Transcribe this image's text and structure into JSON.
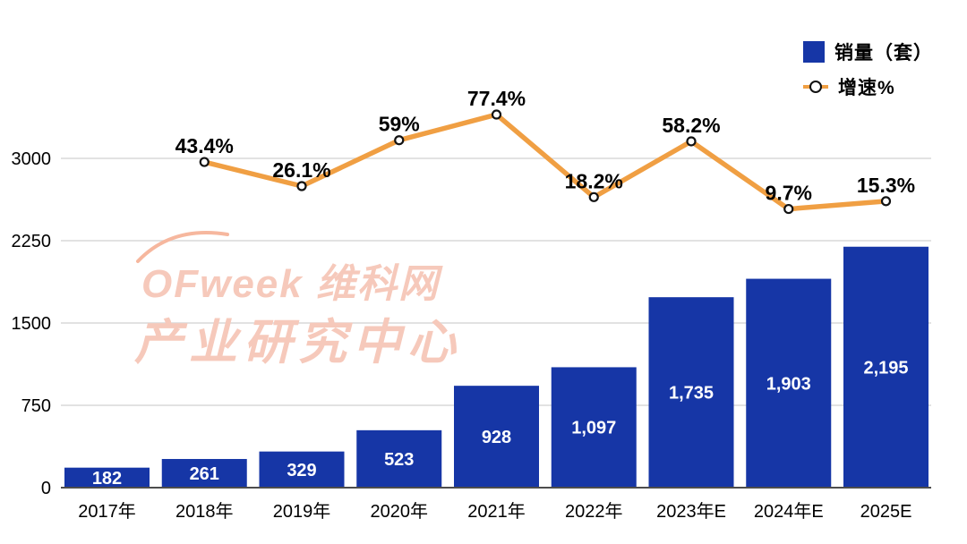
{
  "legend": {
    "bar_label": "销量（套）",
    "line_label": "增速%"
  },
  "watermark": {
    "line1": "OFweek 维科网",
    "line2": "产业研究中心"
  },
  "colors": {
    "bar": "#1636a6",
    "line": "#f09f43",
    "marker_fill": "#ffffff",
    "marker_stroke": "#111111",
    "grid": "#d9d9d9",
    "axis": "#4d4d4d",
    "bar_value_text": "#ffffff",
    "label_text": "#000000",
    "watermark": "#f6c9bb"
  },
  "chart_data": {
    "type": "bar",
    "subtype": "bar+line combo, dual axis",
    "categories": [
      "2017年",
      "2018年",
      "2019年",
      "2020年",
      "2021年",
      "2022年",
      "2023年E",
      "2024年E",
      "2025E"
    ],
    "series": [
      {
        "name": "销量（套）",
        "type": "bar",
        "values": [
          182,
          261,
          329,
          523,
          928,
          1097,
          1735,
          1903,
          2195
        ],
        "labels": [
          "182",
          "261",
          "329",
          "523",
          "928",
          "1,097",
          "1,735",
          "1,903",
          "2,195"
        ]
      },
      {
        "name": "增速%",
        "type": "line",
        "values": [
          null,
          43.4,
          26.1,
          59,
          77.4,
          18.2,
          58.2,
          9.7,
          15.3
        ],
        "labels": [
          "",
          "43.4%",
          "26.1%",
          "59%",
          "77.4%",
          "18.2%",
          "58.2%",
          "9.7%",
          "15.3%"
        ]
      }
    ],
    "title": "",
    "xlabel": "",
    "ylabel": "",
    "y_axis_left": {
      "ticks": [
        0,
        750,
        1500,
        2250,
        3000
      ],
      "ylim": [
        0,
        3000
      ]
    },
    "grid": true,
    "legend_position": "top-right",
    "bar_value_labels_inside": true,
    "line_value_labels_above_points": true
  }
}
